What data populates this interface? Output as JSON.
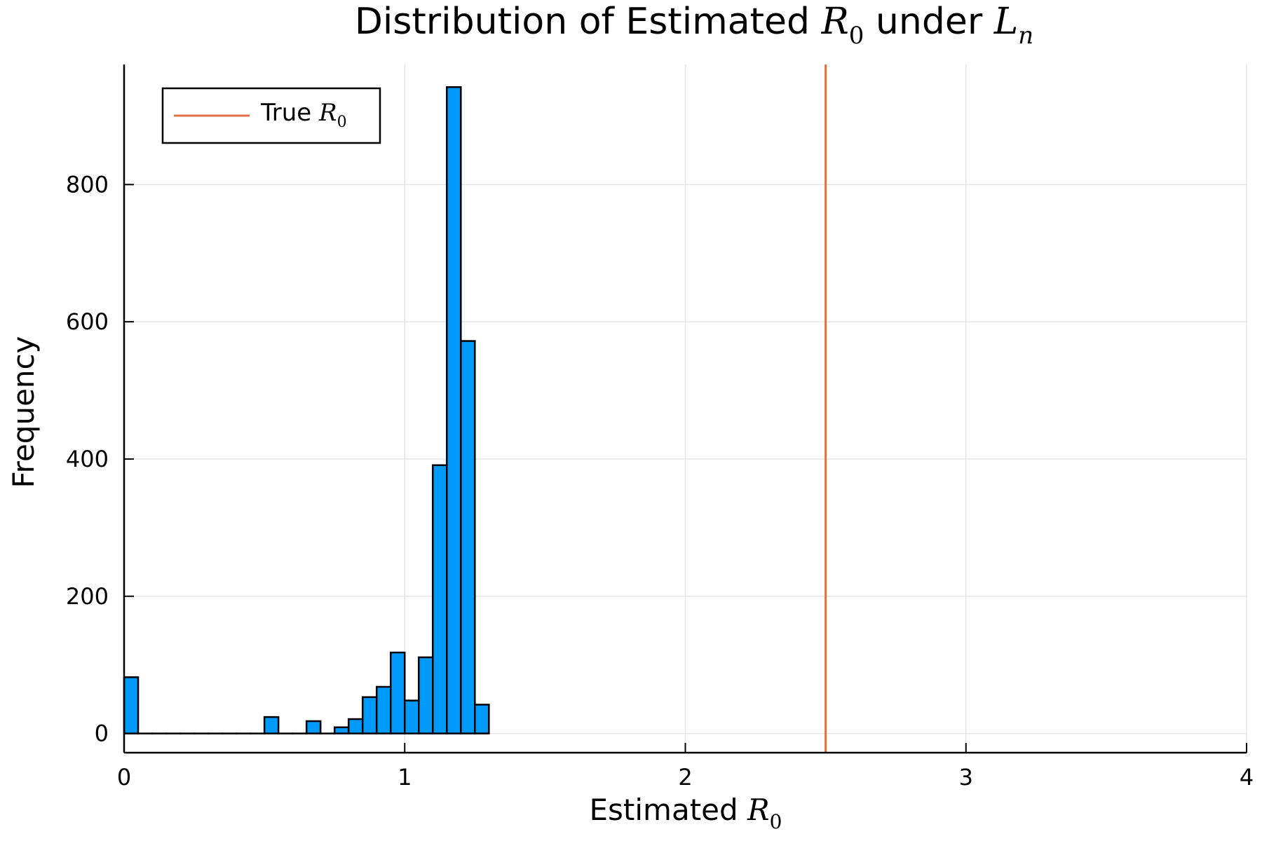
{
  "chart_data": {
    "type": "bar",
    "title": {
      "prefix": "Distribution of Estimated ",
      "math1": "R",
      "math1_sub": "0",
      "middle": " under ",
      "math2": "L",
      "math2_sub": "n"
    },
    "xlabel": {
      "text": "Estimated ",
      "math": "R",
      "math_sub": "0"
    },
    "ylabel": "Frequency",
    "xlim": [
      0,
      4
    ],
    "ylim": [
      -28,
      975
    ],
    "x_ticks": [
      0,
      1,
      2,
      3,
      4
    ],
    "y_ticks": [
      0,
      200,
      400,
      600,
      800
    ],
    "grid": true,
    "bin_width": 0.05,
    "bins": [
      {
        "x0": 0.0,
        "value": 82
      },
      {
        "x0": 0.05,
        "value": 0
      },
      {
        "x0": 0.1,
        "value": 0
      },
      {
        "x0": 0.15,
        "value": 0
      },
      {
        "x0": 0.2,
        "value": 0
      },
      {
        "x0": 0.25,
        "value": 0
      },
      {
        "x0": 0.3,
        "value": 0
      },
      {
        "x0": 0.35,
        "value": 0
      },
      {
        "x0": 0.4,
        "value": 0
      },
      {
        "x0": 0.45,
        "value": 0
      },
      {
        "x0": 0.5,
        "value": 24
      },
      {
        "x0": 0.55,
        "value": 0
      },
      {
        "x0": 0.6,
        "value": 0
      },
      {
        "x0": 0.65,
        "value": 18
      },
      {
        "x0": 0.7,
        "value": 0
      },
      {
        "x0": 0.75,
        "value": 9
      },
      {
        "x0": 0.8,
        "value": 21
      },
      {
        "x0": 0.85,
        "value": 53
      },
      {
        "x0": 0.9,
        "value": 68
      },
      {
        "x0": 0.95,
        "value": 118
      },
      {
        "x0": 1.0,
        "value": 48
      },
      {
        "x0": 1.05,
        "value": 111
      },
      {
        "x0": 1.1,
        "value": 391
      },
      {
        "x0": 1.15,
        "value": 942
      },
      {
        "x0": 1.2,
        "value": 572
      },
      {
        "x0": 1.25,
        "value": 42
      }
    ],
    "reference_line": {
      "x": 2.5
    },
    "legend": {
      "position": "top-left",
      "entry": {
        "text": "True ",
        "math": "R",
        "math_sub": "0"
      }
    },
    "colors": {
      "bar": "#009AFA",
      "reference_line": "#E26F46",
      "grid": "#E5E5E5"
    }
  }
}
